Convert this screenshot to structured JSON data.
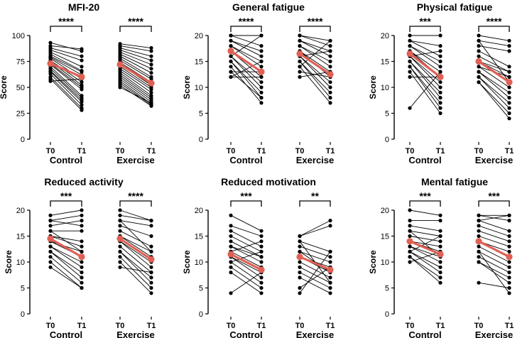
{
  "chart_data": [
    {
      "type": "paired-dot",
      "title": "MFI-20",
      "ylabel": "Score",
      "ylim": [
        0,
        100
      ],
      "yticks": [
        0,
        25,
        50,
        75,
        100
      ],
      "time_labels": [
        "T0",
        "T1"
      ],
      "groups": [
        {
          "name": "Control",
          "significance": "****",
          "pairs": [
            [
              93,
              85
            ],
            [
              90,
              87
            ],
            [
              88,
              80
            ],
            [
              86,
              76
            ],
            [
              84,
              70
            ],
            [
              82,
              66
            ],
            [
              80,
              65
            ],
            [
              79,
              62
            ],
            [
              78,
              58
            ],
            [
              76,
              55
            ],
            [
              75,
              52
            ],
            [
              73,
              50
            ],
            [
              72,
              48
            ],
            [
              70,
              42
            ],
            [
              68,
              40
            ],
            [
              66,
              38
            ],
            [
              65,
              36
            ],
            [
              63,
              33
            ],
            [
              60,
              30
            ],
            [
              58,
              28
            ],
            [
              56,
              58
            ]
          ],
          "mean": [
            73,
            60
          ]
        },
        {
          "name": "Exercise",
          "significance": "****",
          "pairs": [
            [
              92,
              88
            ],
            [
              90,
              85
            ],
            [
              88,
              80
            ],
            [
              86,
              76
            ],
            [
              84,
              72
            ],
            [
              82,
              68
            ],
            [
              80,
              64
            ],
            [
              78,
              60
            ],
            [
              76,
              58
            ],
            [
              74,
              55
            ],
            [
              72,
              52
            ],
            [
              70,
              50
            ],
            [
              68,
              48
            ],
            [
              66,
              45
            ],
            [
              64,
              42
            ],
            [
              62,
              40
            ],
            [
              60,
              38
            ],
            [
              58,
              36
            ],
            [
              56,
              34
            ],
            [
              54,
              33
            ],
            [
              52,
              32
            ],
            [
              50,
              35
            ]
          ],
          "mean": [
            72,
            54
          ]
        }
      ]
    },
    {
      "type": "paired-dot",
      "title": "General fatigue",
      "ylabel": "Score",
      "ylim": [
        0,
        20
      ],
      "yticks": [
        0,
        5,
        10,
        15,
        20
      ],
      "time_labels": [
        "T0",
        "T1"
      ],
      "groups": [
        {
          "name": "Control",
          "significance": "****",
          "pairs": [
            [
              20,
              20
            ],
            [
              20,
              18
            ],
            [
              19,
              17
            ],
            [
              19,
              16
            ],
            [
              18,
              15
            ],
            [
              18,
              14
            ],
            [
              17,
              13
            ],
            [
              17,
              12
            ],
            [
              16,
              11
            ],
            [
              16,
              10
            ],
            [
              15,
              9
            ],
            [
              15,
              8
            ],
            [
              14,
              7
            ],
            [
              13,
              8
            ],
            [
              13,
              13
            ],
            [
              12,
              12
            ],
            [
              12,
              15
            ],
            [
              16,
              20
            ]
          ],
          "mean": [
            17,
            13
          ]
        },
        {
          "name": "Exercise",
          "significance": "****",
          "pairs": [
            [
              20,
              19
            ],
            [
              20,
              18
            ],
            [
              19,
              17
            ],
            [
              19,
              16
            ],
            [
              18,
              15
            ],
            [
              18,
              14
            ],
            [
              17,
              13
            ],
            [
              17,
              12
            ],
            [
              16,
              11
            ],
            [
              16,
              10
            ],
            [
              15,
              9
            ],
            [
              15,
              8
            ],
            [
              14,
              7
            ],
            [
              13,
              12
            ],
            [
              12,
              13
            ],
            [
              14,
              19
            ],
            [
              16,
              17
            ]
          ],
          "mean": [
            16.5,
            12.5
          ]
        }
      ]
    },
    {
      "type": "paired-dot",
      "title": "Physical fatigue",
      "ylabel": "Score",
      "ylim": [
        0,
        20
      ],
      "yticks": [
        0,
        5,
        10,
        15,
        20
      ],
      "time_labels": [
        "T0",
        "T1"
      ],
      "groups": [
        {
          "name": "Control",
          "significance": "***",
          "pairs": [
            [
              20,
              20
            ],
            [
              19,
              18
            ],
            [
              19,
              16
            ],
            [
              18,
              15
            ],
            [
              18,
              14
            ],
            [
              17,
              13
            ],
            [
              17,
              12
            ],
            [
              16,
              11
            ],
            [
              16,
              10
            ],
            [
              15,
              9
            ],
            [
              15,
              8
            ],
            [
              14,
              7
            ],
            [
              14,
              6
            ],
            [
              13,
              5
            ],
            [
              12,
              12
            ],
            [
              6,
              13
            ],
            [
              16,
              17
            ]
          ],
          "mean": [
            16.5,
            12
          ]
        },
        {
          "name": "Exercise",
          "significance": "****",
          "pairs": [
            [
              20,
              19
            ],
            [
              19,
              18
            ],
            [
              18,
              17
            ],
            [
              17,
              14
            ],
            [
              16,
              13
            ],
            [
              15,
              12
            ],
            [
              15,
              11
            ],
            [
              14,
              10
            ],
            [
              13,
              9
            ],
            [
              13,
              8
            ],
            [
              12,
              7
            ],
            [
              12,
              6
            ],
            [
              11,
              5
            ],
            [
              11,
              4
            ],
            [
              14,
              12
            ],
            [
              15,
              13
            ],
            [
              19,
              11
            ]
          ],
          "mean": [
            15,
            11
          ]
        }
      ]
    },
    {
      "type": "paired-dot",
      "title": "Reduced activity",
      "ylabel": "Score",
      "ylim": [
        0,
        20
      ],
      "yticks": [
        0,
        5,
        10,
        15,
        20
      ],
      "time_labels": [
        "T0",
        "T1"
      ],
      "groups": [
        {
          "name": "Control",
          "significance": "***",
          "pairs": [
            [
              19,
              20
            ],
            [
              18,
              19
            ],
            [
              17,
              18
            ],
            [
              16,
              16
            ],
            [
              15,
              14
            ],
            [
              15,
              13
            ],
            [
              14,
              12
            ],
            [
              14,
              11
            ],
            [
              13,
              10
            ],
            [
              13,
              9
            ],
            [
              12,
              8
            ],
            [
              12,
              7
            ],
            [
              11,
              6
            ],
            [
              10,
              5
            ],
            [
              9,
              5
            ],
            [
              18,
              17
            ],
            [
              16,
              12
            ]
          ],
          "mean": [
            14.5,
            11
          ]
        },
        {
          "name": "Exercise",
          "significance": "****",
          "pairs": [
            [
              20,
              18
            ],
            [
              19,
              18
            ],
            [
              18,
              17
            ],
            [
              17,
              15
            ],
            [
              16,
              13
            ],
            [
              15,
              12
            ],
            [
              15,
              11
            ],
            [
              14,
              10
            ],
            [
              14,
              9
            ],
            [
              13,
              8
            ],
            [
              12,
              7
            ],
            [
              12,
              6
            ],
            [
              11,
              5
            ],
            [
              10,
              4
            ],
            [
              9,
              8
            ],
            [
              18,
              12
            ]
          ],
          "mean": [
            14.5,
            10.5
          ]
        }
      ]
    },
    {
      "type": "paired-dot",
      "title": "Reduced motivation",
      "ylabel": "Score",
      "ylim": [
        0,
        20
      ],
      "yticks": [
        0,
        5,
        10,
        15,
        20
      ],
      "time_labels": [
        "T0",
        "T1"
      ],
      "groups": [
        {
          "name": "Control",
          "significance": "***",
          "pairs": [
            [
              19,
              16
            ],
            [
              17,
              15
            ],
            [
              16,
              13
            ],
            [
              15,
              12
            ],
            [
              14,
              11
            ],
            [
              13,
              10
            ],
            [
              12,
              9
            ],
            [
              11,
              8
            ],
            [
              11,
              7
            ],
            [
              10,
              6
            ],
            [
              9,
              5
            ],
            [
              8,
              4
            ],
            [
              4,
              8
            ],
            [
              12,
              14
            ],
            [
              10,
              12
            ],
            [
              13,
              11
            ]
          ],
          "mean": [
            11.5,
            8.5
          ]
        },
        {
          "name": "Exercise",
          "significance": "**",
          "pairs": [
            [
              15,
              18
            ],
            [
              15,
              17
            ],
            [
              14,
              12
            ],
            [
              13,
              11
            ],
            [
              12,
              10
            ],
            [
              11,
              9
            ],
            [
              11,
              8
            ],
            [
              10,
              7
            ],
            [
              9,
              6
            ],
            [
              8,
              5
            ],
            [
              7,
              4
            ],
            [
              5,
              9
            ],
            [
              4,
              12
            ],
            [
              12,
              8
            ],
            [
              14,
              6
            ]
          ],
          "mean": [
            11,
            8.5
          ]
        }
      ]
    },
    {
      "type": "paired-dot",
      "title": "Mental fatigue",
      "ylabel": "Score",
      "ylim": [
        0,
        20
      ],
      "yticks": [
        0,
        5,
        10,
        15,
        20
      ],
      "time_labels": [
        "T0",
        "T1"
      ],
      "groups": [
        {
          "name": "Control",
          "significance": "***",
          "pairs": [
            [
              20,
              19
            ],
            [
              18,
              18
            ],
            [
              17,
              16
            ],
            [
              16,
              15
            ],
            [
              15,
              14
            ],
            [
              14,
              13
            ],
            [
              14,
              12
            ],
            [
              13,
              11
            ],
            [
              13,
              10
            ],
            [
              12,
              9
            ],
            [
              12,
              8
            ],
            [
              11,
              7
            ],
            [
              11,
              6
            ],
            [
              10,
              12
            ],
            [
              12,
              15
            ],
            [
              16,
              11
            ]
          ],
          "mean": [
            14,
            11.5
          ]
        },
        {
          "name": "Exercise",
          "significance": "***",
          "pairs": [
            [
              19,
              19
            ],
            [
              19,
              18
            ],
            [
              18,
              16
            ],
            [
              17,
              15
            ],
            [
              16,
              14
            ],
            [
              15,
              13
            ],
            [
              14,
              12
            ],
            [
              14,
              11
            ],
            [
              13,
              10
            ],
            [
              12,
              9
            ],
            [
              11,
              8
            ],
            [
              10,
              7
            ],
            [
              10,
              6
            ],
            [
              6,
              5
            ],
            [
              12,
              4
            ],
            [
              18,
              19
            ]
          ],
          "mean": [
            14,
            11
          ]
        }
      ]
    }
  ]
}
